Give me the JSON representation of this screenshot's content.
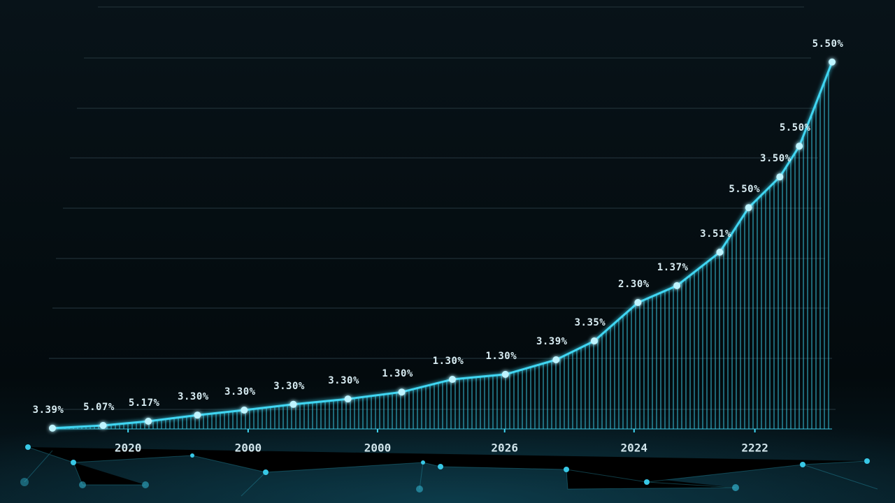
{
  "chart_data": {
    "type": "line",
    "x": [
      0,
      6.5,
      12.3,
      18.6,
      24.6,
      30.9,
      37.9,
      44.8,
      51.3,
      58.1,
      64.6,
      69.5,
      75.1,
      80.1,
      85.6,
      89.3,
      93.3,
      95.8,
      100
    ],
    "values": [
      0.2,
      0.9,
      2,
      3.6,
      4.9,
      6.4,
      7.8,
      9.6,
      12.9,
      14.2,
      18,
      22.9,
      32.9,
      37.3,
      46,
      57.6,
      65.6,
      73.6,
      95.5
    ],
    "annotations": [
      "3.39%",
      "5.07%",
      "5.17%",
      "3.30%",
      "3.30%",
      "3.30%",
      "3.30%",
      "1.30%",
      "1.30%",
      "1.30%",
      "3.39%",
      "3.35%",
      "2.30%",
      "1.37%",
      "3.51%",
      "5.50%",
      "3.50%",
      "5.50%",
      "5.50%"
    ],
    "color": "#3fd6f2",
    "xlim": [
      0,
      100
    ],
    "ylim": [
      0,
      100
    ],
    "xticks": [
      {
        "value": 9.7,
        "label": "2020"
      },
      {
        "value": 25.1,
        "label": "2000"
      },
      {
        "value": 41.7,
        "label": "2000"
      },
      {
        "value": 58,
        "label": "2026"
      },
      {
        "value": 74.6,
        "label": "2024"
      },
      {
        "value": 90.1,
        "label": "2222"
      }
    ]
  }
}
